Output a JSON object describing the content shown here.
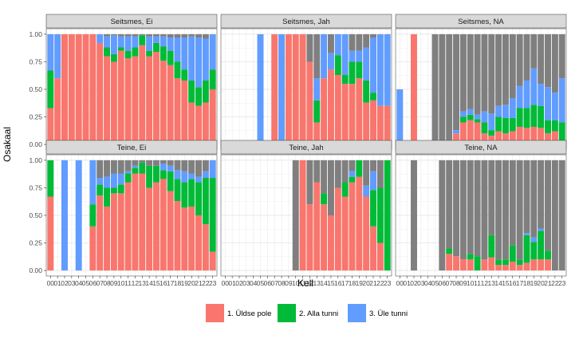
{
  "chart_data": {
    "type": "bar",
    "stacked": true,
    "facet_rows": [
      "Seitsmes",
      "Teine"
    ],
    "facet_cols": [
      "Ei",
      "Jah",
      "NA"
    ],
    "xlabel": "Kell",
    "ylabel": "Osakaal",
    "ylim": [
      0,
      1
    ],
    "y_ticks": [
      "0.00",
      "0.25",
      "0.50",
      "0.75",
      "1.00"
    ],
    "categories": [
      "00",
      "01",
      "02",
      "03",
      "04",
      "05",
      "06",
      "07",
      "08",
      "09",
      "10",
      "11",
      "12",
      "13",
      "14",
      "15",
      "16",
      "17",
      "18",
      "19",
      "20",
      "21",
      "22",
      "23"
    ],
    "legend": {
      "position": "bottom",
      "entries": [
        {
          "label": "1. Üldse pole",
          "color": "#F8766D"
        },
        {
          "label": "2. Alla tunni",
          "color": "#00BA38"
        },
        {
          "label": "3. Üle tunni",
          "color": "#619CFF"
        }
      ]
    },
    "na_color": "#7F7F7F",
    "series_order": [
      "Üldse pole",
      "Alla tunni",
      "Üle tunni",
      "NA"
    ],
    "panels": [
      {
        "title": "Seitsmes, Ei",
        "bars": [
          [
            0.33,
            0.34,
            0.33,
            0
          ],
          [
            0.6,
            0,
            0.4,
            0
          ],
          [
            1,
            0,
            0,
            0
          ],
          [
            1,
            0,
            0,
            0
          ],
          [
            1,
            0,
            0,
            0
          ],
          [
            1,
            0,
            0,
            0
          ],
          [
            1,
            0,
            0,
            0
          ],
          [
            0.92,
            0,
            0.08,
            0
          ],
          [
            0.8,
            0.08,
            0.1,
            0.02
          ],
          [
            0.75,
            0.07,
            0.17,
            0.01
          ],
          [
            0.85,
            0.03,
            0.1,
            0.02
          ],
          [
            0.78,
            0.07,
            0.13,
            0.02
          ],
          [
            0.8,
            0.08,
            0.1,
            0.02
          ],
          [
            0.9,
            0.09,
            0,
            0.01
          ],
          [
            0.8,
            0.05,
            0.13,
            0.02
          ],
          [
            0.84,
            0.08,
            0.06,
            0.02
          ],
          [
            0.76,
            0.13,
            0.09,
            0.02
          ],
          [
            0.72,
            0.13,
            0.12,
            0.03
          ],
          [
            0.6,
            0.15,
            0.22,
            0.03
          ],
          [
            0.58,
            0.1,
            0.29,
            0.03
          ],
          [
            0.38,
            0.2,
            0.4,
            0.02
          ],
          [
            0.35,
            0.17,
            0.45,
            0.03
          ],
          [
            0.38,
            0.2,
            0.38,
            0.04
          ],
          [
            0.5,
            0.18,
            0.32,
            0
          ]
        ]
      },
      {
        "title": "Seitsmes, Jah",
        "bars": [
          [
            0,
            0,
            0,
            0
          ],
          [
            0,
            0,
            0,
            0
          ],
          [
            0,
            0,
            0,
            0
          ],
          [
            0,
            0,
            0,
            0
          ],
          [
            0,
            0,
            0,
            0
          ],
          [
            0,
            0,
            1,
            0
          ],
          [
            0,
            0,
            0,
            0
          ],
          [
            1,
            0,
            0,
            0
          ],
          [
            0,
            0,
            1,
            0
          ],
          [
            1,
            0,
            0,
            0
          ],
          [
            1,
            0,
            0,
            0
          ],
          [
            1,
            0,
            0,
            0
          ],
          [
            0.75,
            0,
            0,
            0.25
          ],
          [
            0.2,
            0.2,
            0.2,
            0.4
          ],
          [
            0.6,
            0,
            0.4,
            0
          ],
          [
            0.68,
            0,
            0.15,
            0.17
          ],
          [
            0.63,
            0.18,
            0.19,
            0
          ],
          [
            0.55,
            0.08,
            0.37,
            0
          ],
          [
            0.55,
            0.2,
            0.1,
            0.15
          ],
          [
            0.6,
            0.15,
            0.1,
            0.15
          ],
          [
            0.38,
            0.2,
            0.3,
            0.12
          ],
          [
            0.4,
            0.07,
            0.5,
            0.03
          ],
          [
            0.35,
            0,
            0.65,
            0
          ],
          [
            0.35,
            0,
            0.65,
            0
          ]
        ]
      },
      {
        "title": "Seitsmes, NA",
        "bars": [
          [
            0,
            0,
            0.5,
            0
          ],
          [
            0,
            0,
            0,
            0
          ],
          [
            1,
            0,
            0,
            0
          ],
          [
            0,
            0,
            0,
            0
          ],
          [
            0,
            0,
            0,
            0
          ],
          [
            0,
            0,
            0,
            1
          ],
          [
            0,
            0,
            0,
            1
          ],
          [
            0,
            0,
            0,
            1
          ],
          [
            0.1,
            0,
            0.03,
            0.87
          ],
          [
            0.2,
            0.05,
            0.05,
            0.7
          ],
          [
            0.22,
            0.05,
            0.05,
            0.68
          ],
          [
            0.2,
            0.03,
            0.04,
            0.73
          ],
          [
            0.1,
            0.1,
            0.1,
            0.7
          ],
          [
            0.08,
            0.05,
            0.15,
            0.72
          ],
          [
            0.12,
            0.13,
            0.1,
            0.65
          ],
          [
            0.1,
            0.14,
            0.12,
            0.64
          ],
          [
            0.12,
            0.12,
            0.18,
            0.58
          ],
          [
            0.16,
            0.17,
            0.2,
            0.47
          ],
          [
            0.15,
            0.18,
            0.25,
            0.42
          ],
          [
            0.16,
            0.2,
            0.33,
            0.31
          ],
          [
            0.15,
            0.2,
            0.2,
            0.45
          ],
          [
            0.1,
            0.12,
            0.3,
            0.48
          ],
          [
            0.12,
            0.1,
            0.25,
            0.53
          ],
          [
            0,
            0.2,
            0.4,
            0.4
          ]
        ]
      },
      {
        "title": "Teine, Ei",
        "bars": [
          [
            0.67,
            0.33,
            0,
            0
          ],
          [
            0,
            0,
            0,
            0
          ],
          [
            0,
            0,
            1,
            0
          ],
          [
            0,
            0,
            0,
            0
          ],
          [
            0,
            0,
            1,
            0
          ],
          [
            0,
            0,
            0,
            0
          ],
          [
            0.4,
            0.2,
            0.4,
            0
          ],
          [
            0.68,
            0.1,
            0.06,
            0.16
          ],
          [
            0.58,
            0.17,
            0.1,
            0.15
          ],
          [
            0.7,
            0.05,
            0.13,
            0.12
          ],
          [
            0.7,
            0.08,
            0.1,
            0.12
          ],
          [
            0.8,
            0.08,
            0.02,
            0.1
          ],
          [
            0.88,
            0.05,
            0.02,
            0.05
          ],
          [
            0.88,
            0.1,
            0,
            0.02
          ],
          [
            0.75,
            0.2,
            0,
            0.05
          ],
          [
            0.8,
            0.15,
            0,
            0.05
          ],
          [
            0.83,
            0.08,
            0.06,
            0.03
          ],
          [
            0.72,
            0.18,
            0.05,
            0.05
          ],
          [
            0.63,
            0.2,
            0.08,
            0.09
          ],
          [
            0.57,
            0.23,
            0.1,
            0.1
          ],
          [
            0.58,
            0.25,
            0.05,
            0.12
          ],
          [
            0.5,
            0.3,
            0.05,
            0.15
          ],
          [
            0.42,
            0.42,
            0.06,
            0.1
          ],
          [
            0.17,
            0.67,
            0.16,
            0
          ]
        ]
      },
      {
        "title": "Teine, Jah",
        "bars": [
          [
            0,
            0,
            0,
            0
          ],
          [
            0,
            0,
            0,
            0
          ],
          [
            0,
            0,
            0,
            0
          ],
          [
            0,
            0,
            0,
            0
          ],
          [
            0,
            0,
            0,
            0
          ],
          [
            0,
            0,
            0,
            0
          ],
          [
            0,
            0,
            0,
            0
          ],
          [
            0,
            0,
            0,
            0
          ],
          [
            0,
            0,
            0,
            0
          ],
          [
            0,
            0,
            0,
            0
          ],
          [
            0,
            0,
            0,
            1
          ],
          [
            1,
            0,
            0,
            0
          ],
          [
            0.6,
            0,
            0,
            0.4
          ],
          [
            0.8,
            0,
            0,
            0.2
          ],
          [
            0.6,
            0.1,
            0,
            0.3
          ],
          [
            0.5,
            0,
            0,
            0.5
          ],
          [
            0.75,
            0,
            0,
            0.25
          ],
          [
            0.67,
            0.13,
            0,
            0.2
          ],
          [
            0.8,
            0.05,
            0.05,
            0.1
          ],
          [
            0.85,
            0.15,
            0,
            0
          ],
          [
            0.67,
            0,
            0.1,
            0.23
          ],
          [
            0.4,
            0.33,
            0.17,
            0.1
          ],
          [
            0.25,
            0.5,
            0,
            0.25
          ],
          [
            0,
            1,
            0,
            0
          ]
        ]
      },
      {
        "title": "Teine, NA",
        "bars": [
          [
            0,
            0,
            0,
            0
          ],
          [
            0,
            0,
            0,
            0
          ],
          [
            0,
            0,
            0,
            1
          ],
          [
            0,
            0,
            0,
            0
          ],
          [
            0,
            0,
            0,
            0
          ],
          [
            0,
            0,
            0,
            0
          ],
          [
            0,
            0,
            0,
            1
          ],
          [
            0.15,
            0.05,
            0,
            0.8
          ],
          [
            0.13,
            0,
            0,
            0.87
          ],
          [
            0.1,
            0,
            0,
            0.9
          ],
          [
            0.1,
            0.05,
            0,
            0.85
          ],
          [
            0,
            0.13,
            0,
            0.87
          ],
          [
            0.1,
            0,
            0,
            0.9
          ],
          [
            0.12,
            0.2,
            0,
            0.68
          ],
          [
            0.05,
            0.05,
            0,
            0.9
          ],
          [
            0.05,
            0.05,
            0,
            0.9
          ],
          [
            0.08,
            0.15,
            0,
            0.77
          ],
          [
            0.05,
            0.05,
            0,
            0.9
          ],
          [
            0.07,
            0.25,
            0.02,
            0.66
          ],
          [
            0.1,
            0.16,
            0.04,
            0.7
          ],
          [
            0.1,
            0.26,
            0.02,
            0.62
          ],
          [
            0.1,
            0.08,
            0,
            0.82
          ],
          [
            0,
            0,
            0,
            1
          ],
          [
            0,
            0,
            0,
            1
          ]
        ]
      }
    ]
  }
}
